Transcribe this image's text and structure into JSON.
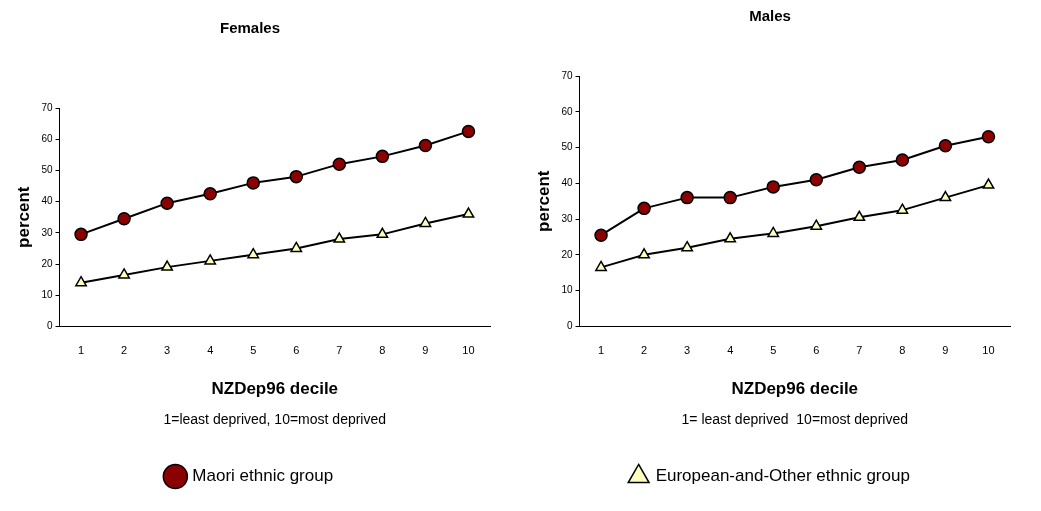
{
  "chart_data": [
    {
      "type": "line",
      "title": "Females",
      "xlabel": "NZDep96 decile",
      "ylabel": "percent",
      "annotations": [
        "1=least deprived, 10=most deprived"
      ],
      "categories": [
        "1",
        "2",
        "3",
        "4",
        "5",
        "6",
        "7",
        "8",
        "9",
        "10"
      ],
      "ylim": [
        0,
        70
      ],
      "yticks": [
        0,
        10,
        20,
        30,
        40,
        50,
        60,
        70
      ],
      "grid": false,
      "legend": "bottom",
      "series": [
        {
          "name": "Maori ethnic group",
          "color": "#8b0000",
          "marker": "circle",
          "values": [
            29.5,
            34.5,
            39.5,
            42.5,
            46,
            48,
            52,
            54.5,
            58,
            62.5
          ]
        },
        {
          "color": "#ffffc0",
          "marker": "triangle",
          "values": [
            14,
            16.5,
            19,
            21,
            23,
            25,
            28,
            29.5,
            33,
            36
          ]
        }
      ]
    },
    {
      "type": "line",
      "title": "Males",
      "xlabel": "NZDep96 decile",
      "ylabel": "percent",
      "annotations": [
        "1= least deprived  10=most deprived"
      ],
      "categories": [
        "1",
        "2",
        "3",
        "4",
        "5",
        "6",
        "7",
        "8",
        "9",
        "10"
      ],
      "ylim": [
        0,
        70
      ],
      "yticks": [
        0,
        10,
        20,
        30,
        40,
        50,
        60,
        70
      ],
      "grid": false,
      "legend": "bottom",
      "series": [
        {
          "color": "#8b0000",
          "marker": "circle",
          "values": [
            25.5,
            33,
            36,
            36,
            39,
            41,
            44.5,
            46.5,
            50.5,
            53
          ]
        },
        {
          "name": "European-and-Other ethnic group",
          "color": "#ffffc0",
          "marker": "triangle",
          "values": [
            16.5,
            20,
            22,
            24.5,
            26,
            28,
            30.5,
            32.5,
            36,
            39.5
          ]
        }
      ]
    }
  ]
}
